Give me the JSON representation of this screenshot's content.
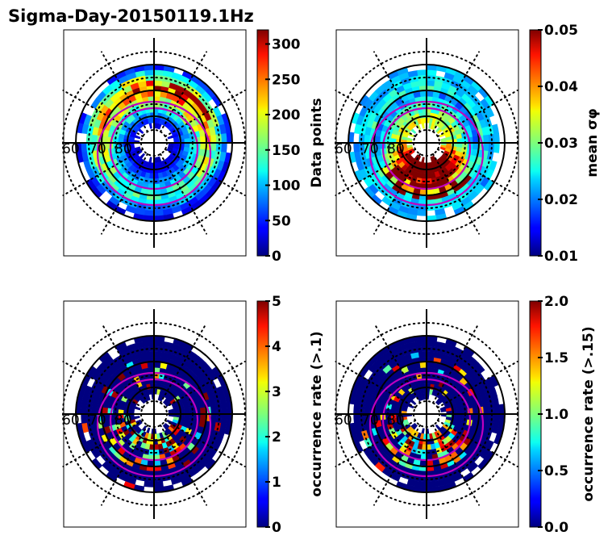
{
  "figure_title": "Sigma-Day-20150119.1Hz",
  "chart_data": [
    {
      "type": "heatmap",
      "projection": "polar (magnetic latitude / MLT)",
      "colormap": "jet",
      "colorbar": {
        "label": "Data points",
        "range": [
          0,
          320
        ],
        "ticks": [
          "0",
          "50",
          "100",
          "150",
          "200",
          "250",
          "300"
        ],
        "tick_values": [
          0,
          50,
          100,
          150,
          200,
          250,
          300
        ]
      },
      "lat_labels": [
        "60",
        "70",
        "80"
      ],
      "pattern": "ring-peak",
      "description": "Counts peak (~200-320) in a ring at ~65-70 deg latitude on the dayside/dusk side; low (<50) near pole and outer edges",
      "ring_values": [
        20,
        40,
        60,
        90,
        120,
        150,
        180,
        200,
        170,
        130,
        80,
        40
      ]
    },
    {
      "type": "heatmap",
      "projection": "polar (magnetic latitude / MLT)",
      "colormap": "jet",
      "colorbar": {
        "label": "mean σφ",
        "range": [
          0.01,
          0.05
        ],
        "ticks": [
          "0.01",
          "0.02",
          "0.03",
          "0.04",
          "0.05"
        ],
        "tick_values": [
          0.01,
          0.02,
          0.03,
          0.04,
          0.05
        ]
      },
      "lat_labels": [
        "60",
        "70",
        "80"
      ],
      "pattern": "auroral-high",
      "description": "High mean sigma-phi (0.04-0.05) near 70-80 deg on the nightside/pole; ~0.02-0.025 at lower latitudes",
      "ring_values": [
        0.045,
        0.048,
        0.046,
        0.042,
        0.038,
        0.033,
        0.029,
        0.026,
        0.024,
        0.023,
        0.022,
        0.022
      ]
    },
    {
      "type": "heatmap",
      "projection": "polar (magnetic latitude / MLT)",
      "colormap": "jet",
      "colorbar": {
        "label": "occurrence rate (>.1)",
        "range": [
          0,
          5
        ],
        "ticks": [
          "0",
          "1",
          "2",
          "3",
          "4",
          "5"
        ],
        "tick_values": [
          0,
          1,
          2,
          3,
          4,
          5
        ]
      },
      "lat_labels": [
        "60",
        "70",
        "80"
      ],
      "pattern": "sparse-night",
      "description": "Mostly 0; scattered high values (3-5) in the auroral oval on the nightside",
      "ring_values": [
        0,
        1,
        3,
        2,
        2,
        1,
        0.5,
        0,
        0,
        0,
        0,
        0
      ]
    },
    {
      "type": "heatmap",
      "projection": "polar (magnetic latitude / MLT)",
      "colormap": "jet",
      "colorbar": {
        "label": "occurrence rate (>.15)",
        "range": [
          0,
          2
        ],
        "ticks": [
          "0.0",
          "0.5",
          "1.0",
          "1.5",
          "2.0"
        ],
        "tick_values": [
          0,
          0.5,
          1.0,
          1.5,
          2.0
        ]
      },
      "lat_labels": [
        "60",
        "70",
        "80"
      ],
      "pattern": "sparse-night",
      "description": "Mostly 0; sparse high values (1.5-2.0) in the nightside auroral oval",
      "ring_values": [
        0,
        0.4,
        1.2,
        0.8,
        0.8,
        0.4,
        0.2,
        0,
        0,
        0,
        0,
        0
      ]
    }
  ]
}
